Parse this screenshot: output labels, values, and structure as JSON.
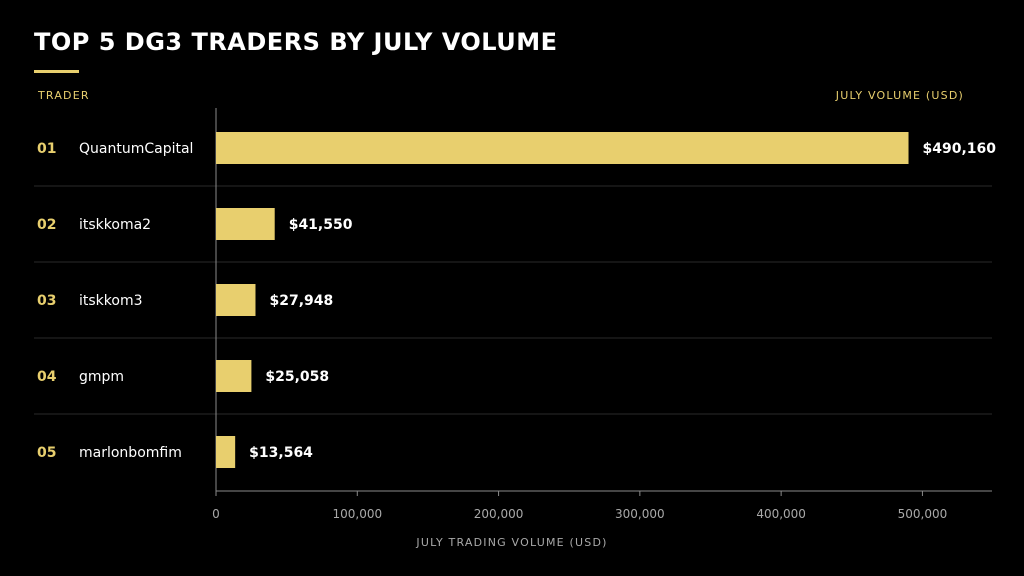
{
  "chart_data": {
    "type": "bar",
    "orientation": "horizontal",
    "title": "TOP 5 DG3 TRADERS BY JULY VOLUME",
    "left_header": "TRADER",
    "right_header": "JULY VOLUME (USD)",
    "xlabel": "JULY TRADING VOLUME (USD)",
    "xlim": [
      0,
      545000
    ],
    "xticks": [
      {
        "value": 0,
        "label": "0"
      },
      {
        "value": 100000,
        "label": "100,000"
      },
      {
        "value": 200000,
        "label": "200,000"
      },
      {
        "value": 300000,
        "label": "300,000"
      },
      {
        "value": 400000,
        "label": "400,000"
      },
      {
        "value": 500000,
        "label": "500,000"
      }
    ],
    "rows": [
      {
        "rank": "01",
        "name": "QuantumCapital",
        "value": 490160,
        "label": "$490,160"
      },
      {
        "rank": "02",
        "name": "itskkoma2",
        "value": 41550,
        "label": "$41,550"
      },
      {
        "rank": "03",
        "name": "itskkom3",
        "value": 27948,
        "label": "$27,948"
      },
      {
        "rank": "04",
        "name": "gmpm",
        "value": 25058,
        "label": "$25,058"
      },
      {
        "rank": "05",
        "name": "marlonbomfim",
        "value": 13564,
        "label": "$13,564"
      }
    ],
    "grid": false,
    "colors": {
      "bar": "#e8cf6e",
      "accent": "#e8cf6e",
      "text": "#ffffff",
      "axis": "#a9a9a9",
      "row_separator": "#2a2a2a"
    }
  }
}
